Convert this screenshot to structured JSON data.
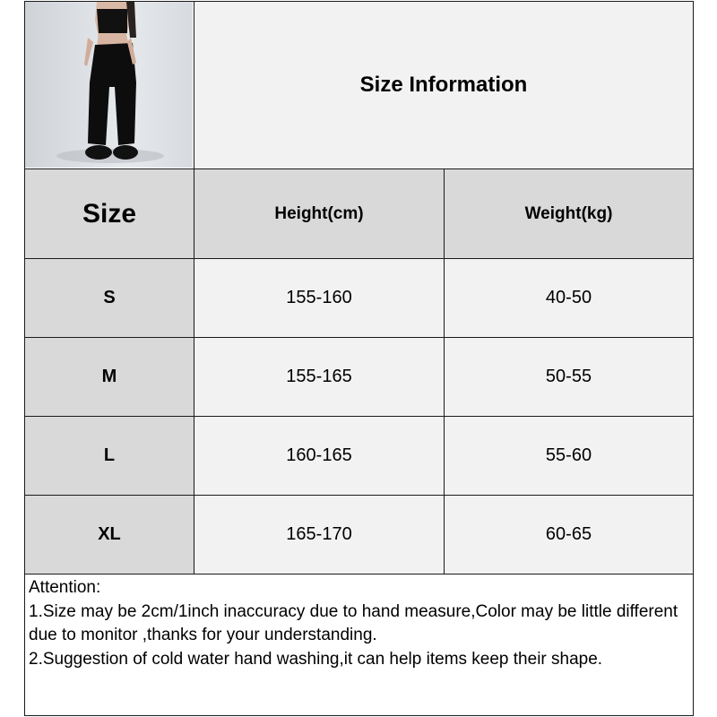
{
  "title": "Size Information",
  "columns": [
    "Size",
    "Height(cm)",
    "Weight(kg)"
  ],
  "rows": [
    {
      "size": "S",
      "height": "155-160",
      "weight": "40-50"
    },
    {
      "size": "M",
      "height": "155-165",
      "weight": "50-55"
    },
    {
      "size": "L",
      "height": "160-165",
      "weight": "55-60"
    },
    {
      "size": "XL",
      "height": "165-170",
      "weight": "60-65"
    }
  ],
  "notes": {
    "heading": "Attention:",
    "lines": [
      "1.Size may be 2cm/1inch inaccuracy due to hand measure,Color may be little different due to monitor ,thanks for your understanding.",
      "2.Suggestion of cold water hand washing,it can help items keep their shape."
    ]
  },
  "colors": {
    "header_gray": "#d9d9d9",
    "cell_light": "#f2f2f2",
    "border": "#1a1a1a"
  }
}
